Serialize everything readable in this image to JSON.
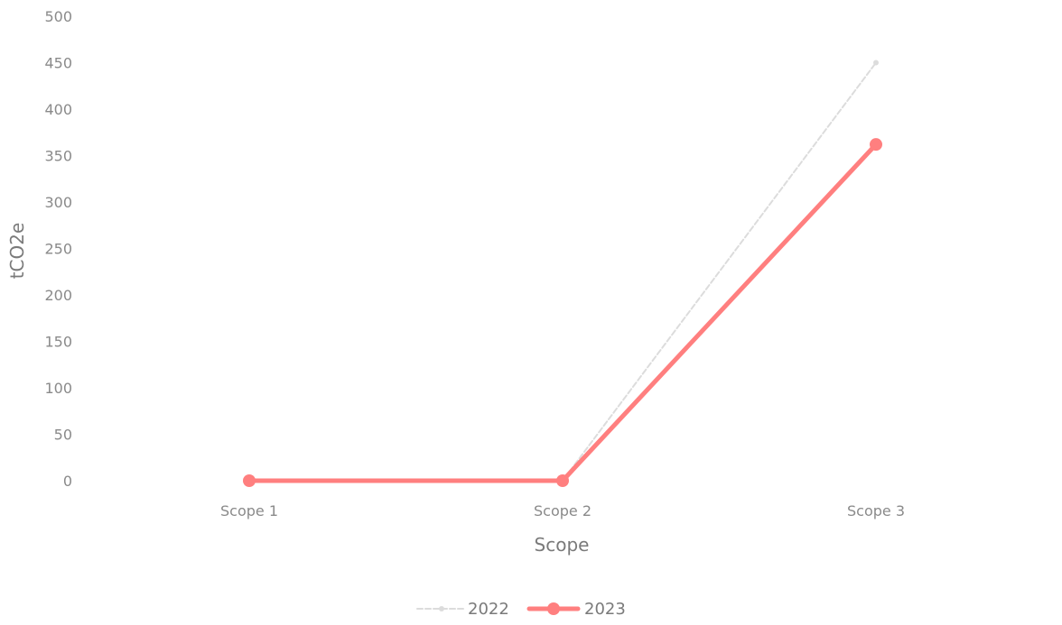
{
  "chart_data": {
    "type": "line",
    "categories": [
      "Scope 1",
      "Scope 2",
      "Scope 3"
    ],
    "series": [
      {
        "name": "2022",
        "values": [
          0,
          0,
          450
        ],
        "color": "#dcdcdc"
      },
      {
        "name": "2023",
        "values": [
          0,
          0,
          362
        ],
        "color": "#ff7f7f"
      }
    ],
    "xlabel": "Scope",
    "ylabel": "tCO2e",
    "ylim": [
      0,
      500
    ],
    "yticks": [
      0,
      50,
      100,
      150,
      200,
      250,
      300,
      350,
      400,
      450,
      500
    ],
    "grid": false,
    "legend": "bottom-center"
  }
}
